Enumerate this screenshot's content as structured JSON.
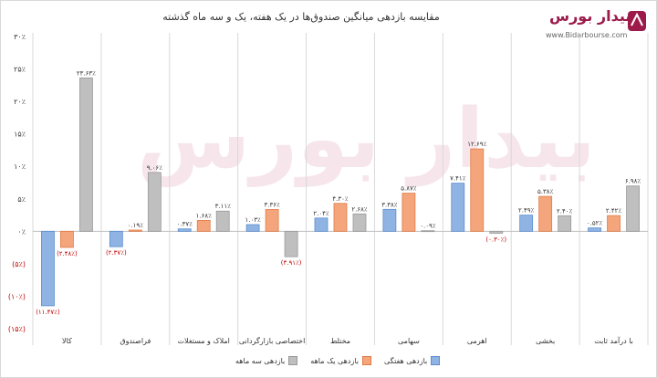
{
  "title": "مقایسه بازدهی میانگین صندوق‌ها در یک هفته، یک و سه ماه گذشته",
  "logo": {
    "text": "بیدار بورس",
    "url": "www.Bidarbourse.com"
  },
  "colors": {
    "weekly": "#8fb4e3",
    "monthly": "#f4a57c",
    "three_month": "#bfbfbf",
    "negative_label": "#c00000"
  },
  "chart_data": {
    "type": "bar",
    "categories": [
      "کالا",
      "فراصندوق",
      "املاک و مستغلات",
      "اختصاصی بازارگردانی",
      "مختلط",
      "سهامی",
      "اهرمی",
      "بخشی",
      "با درآمد ثابت"
    ],
    "series": [
      {
        "name": "بازدهی هفتگی",
        "values": [
          -11.47,
          -2.37,
          0.37,
          1.03,
          2.04,
          3.38,
          7.41,
          2.49,
          0.52
        ],
        "labels": [
          "(۱۱.۴۷٪)",
          "(۲.۳۷٪)",
          "۰.۳۷٪",
          "۱.۰۳٪",
          "۲.۰۴٪",
          "۳.۳۸٪",
          "۷.۴۱٪",
          "۲.۴۹٪",
          "۰.۵۲٪"
        ]
      },
      {
        "name": "بازدهی یک ماهه",
        "values": [
          -2.48,
          0.19,
          1.68,
          3.36,
          4.3,
          5.87,
          12.69,
          5.38,
          2.42
        ],
        "labels": [
          "(۲.۴۸٪)",
          "۰.۱۹٪",
          "۱.۶۸٪",
          "۳.۳۶٪",
          "۴.۳۰٪",
          "۵.۸۷٪",
          "۱۲.۶۹٪",
          "۵.۳۸٪",
          "۲.۴۲٪"
        ]
      },
      {
        "name": "بازدهی سه ماهه",
        "values": [
          23.63,
          9.06,
          3.11,
          -3.91,
          2.68,
          0.09,
          -0.3,
          2.4,
          6.98
        ],
        "labels": [
          "۲۳.۶۳٪",
          "۹.۰۶٪",
          "۳.۱۱٪",
          "(۳.۹۱٪)",
          "۲.۶۸٪",
          "۰.۰۹٪",
          "(۰.۳۰٪)",
          "۲.۴۰٪",
          "۶.۹۸٪"
        ]
      }
    ],
    "yticks": [
      30,
      25,
      20,
      15,
      10,
      5,
      0,
      -5,
      -10,
      -15
    ],
    "ytick_labels": [
      "۳۰٪",
      "۲۵٪",
      "۲۰٪",
      "۱۵٪",
      "۱۰٪",
      "۵٪",
      "۰٪",
      "(۵٪)",
      "(۱۰٪)",
      "(۱۵٪)"
    ],
    "ylim": [
      -15,
      30
    ],
    "legend_position": "bottom",
    "grid": false
  }
}
